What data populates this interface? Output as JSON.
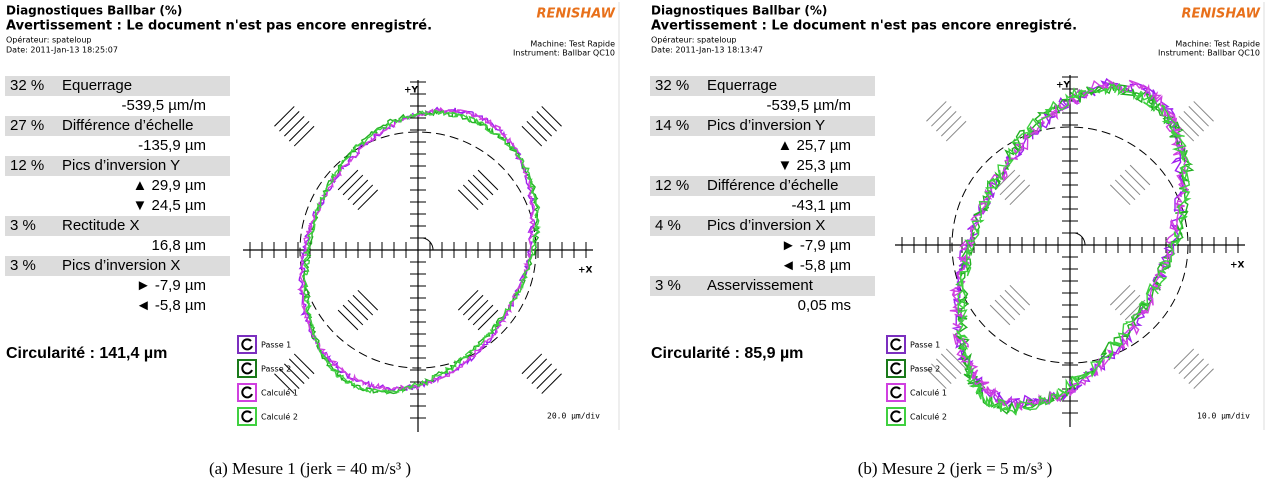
{
  "panels": [
    {
      "title": "Diagnostiques Ballbar (%)",
      "warning": "Avertissement : Le document n'est pas encore enregistré.",
      "brand": "RENISHAW",
      "operator": "Opérateur: spateloup",
      "date": "Date: 2011-Jan-13 18:25:07",
      "machine": "Machine: Test Rapide",
      "instrument": "Instrument: Ballbar QC10",
      "diagnostics": [
        {
          "percent": "32 %",
          "name": "Equerrage",
          "values": [
            "-539,5 µm/m"
          ]
        },
        {
          "percent": "27 %",
          "name": "Différence d’échelle",
          "values": [
            "-135,9 µm"
          ]
        },
        {
          "percent": "12 %",
          "name": "Pics d’inversion Y",
          "values": [
            "▲ 29,9 µm",
            "▼ 24,5 µm"
          ]
        },
        {
          "percent": "3 %",
          "name": "Rectitude X",
          "values": [
            "16,8 µm"
          ]
        },
        {
          "percent": "3 %",
          "name": "Pics d’inversion X",
          "values": [
            "► -7,9 µm",
            "◄ -5,8 µm"
          ]
        }
      ],
      "circularity": "Circularité : 141,4 µm",
      "axis_y": "+Y",
      "axis_x": "+X",
      "legend": [
        "Passe 1",
        "Passe 2",
        "Calculé 1",
        "Calculé 2"
      ],
      "scale": "20.0 µm/div",
      "caption": "(a) Mesure 1 (jerk = 40 m/s³ )"
    },
    {
      "title": "Diagnostiques Ballbar (%)",
      "warning": "Avertissement : Le document n'est pas encore enregistré.",
      "brand": "RENISHAW",
      "operator": "Opérateur: spateloup",
      "date": "Date: 2011-Jan-13 18:13:47",
      "machine": "Machine: Test Rapide",
      "instrument": "Instrument: Ballbar QC10",
      "diagnostics": [
        {
          "percent": "32 %",
          "name": "Equerrage",
          "values": [
            "-539,5 µm/m"
          ]
        },
        {
          "percent": "14 %",
          "name": "Pics d’inversion Y",
          "values": [
            "▲ 25,7 µm",
            "▼ 25,3 µm"
          ]
        },
        {
          "percent": "12 %",
          "name": "Différence d’échelle",
          "values": [
            "-43,1 µm"
          ]
        },
        {
          "percent": "4 %",
          "name": "Pics d’inversion X",
          "values": [
            "► -7,9 µm",
            "◄ -5,8 µm"
          ]
        },
        {
          "percent": "3 %",
          "name": "Asservissement",
          "values": [
            "0,05 ms"
          ]
        }
      ],
      "circularity": "Circularité : 85,9 µm",
      "axis_y": "+Y",
      "axis_x": "+X",
      "legend": [
        "Passe 1",
        "Passe 2",
        "Calculé 1",
        "Calculé 2"
      ],
      "scale": "10.0 µm/div",
      "caption": "(b) Mesure 2 (jerk = 5 m/s³ )"
    }
  ]
}
